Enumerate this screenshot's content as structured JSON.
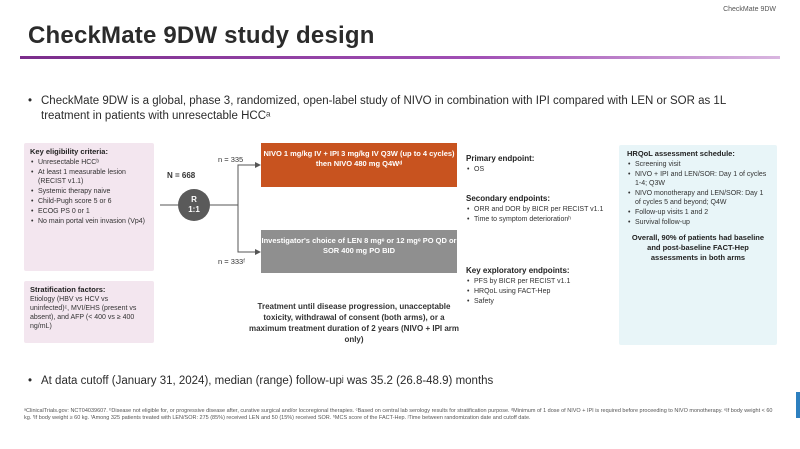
{
  "slide": {
    "tag": "CheckMate 9DW",
    "title": "CheckMate 9DW study design",
    "bullet_main": "CheckMate 9DW is a global, phase 3, randomized, open-label study of NIVO in combination with IPI compared with LEN or SOR as 1L treatment in patients with unresectable HCCᵃ",
    "bullet_cutoff": "At data cutoff (January 31, 2024), median (range) follow-upʲ was 35.2 (26.8-48.9) months",
    "bullet_symbol": "•"
  },
  "eligibility": {
    "heading": "Key eligibility criteria:",
    "items": [
      "Unresectable HCCᵇ",
      "At least 1 measurable lesion (RECIST v1.1)",
      "Systemic therapy naive",
      "Child-Pugh score 5 or 6",
      "ECOG PS 0 or 1",
      "No main portal vein invasion (Vp4)"
    ]
  },
  "stratification": {
    "heading": "Stratification factors:",
    "text": "Etiology (HBV vs HCV vs uninfected)ᶜ, MVI/EHS (present vs absent), and AFP (< 400 vs ≥ 400 ng/mL)"
  },
  "randomization": {
    "n_label": "N = 668",
    "circle_top": "R",
    "circle_bottom": "1:1",
    "arm1_n": "n = 335",
    "arm2_n": "n = 333ᶠ",
    "arm1_text": "NIVO 1 mg/kg IV + IPI 3 mg/kg IV Q3W (up to 4 cycles) then NIVO 480 mg Q4Wᵈ",
    "arm2_text": "Investigator's choice of LEN 8 mgᵉ or 12 mgᵉ PO QD or SOR 400 mg PO BID",
    "treatment_note": "Treatment until disease progression, unacceptable toxicity, withdrawal of consent (both arms), or a maximum treatment duration of 2 years (NIVO + IPI arm only)",
    "colors": {
      "arm1": "#c8531f",
      "arm2": "#8f8f8f",
      "circle": "#5a5a5a"
    }
  },
  "endpoints": {
    "primary_heading": "Primary endpoint:",
    "primary_items": [
      "OS"
    ],
    "secondary_heading": "Secondary endpoints:",
    "secondary_items": [
      "ORR and DOR by BICR per RECIST v1.1",
      "Time to symptom deteriorationʰ"
    ],
    "exploratory_heading": "Key exploratory endpoints:",
    "exploratory_items": [
      "PFS by BICR per RECIST v1.1",
      "HRQoL using FACT-Hep",
      "Safety"
    ]
  },
  "hrqol": {
    "heading": "HRQoL assessment schedule:",
    "items": [
      "Screening visit",
      "NIVO + IPI and LEN/SOR: Day 1 of cycles 1-4; Q3W",
      "NIVO monotherapy and LEN/SOR: Day 1 of cycles 5 and beyond; Q4W",
      "Follow-up visits 1 and 2",
      "Survival follow-up"
    ],
    "note": "Overall, 90% of patients had baseline and post-baseline FACT-Hep assessments in both arms"
  },
  "footnote": "ᵃClinicalTrials.gov: NCT04039607. ᵇDisease not eligible for, or progressive disease after, curative surgical and/or locoregional therapies. ᶜBased on central lab serology results for stratification purpose. ᵈMinimum of 1 dose of NIVO + IPI is required before proceeding to NIVO monotherapy. ᵉIf body weight < 60 kg. ᶠIf body weight ≥ 60 kg. ᶠAmong 325 patients treated with LEN/SOR: 275 (85%) received LEN and 50 (15%) received SOR. ʰMCS score of the FACT-Hep. ʲTime between randomization date and cutoff date."
}
